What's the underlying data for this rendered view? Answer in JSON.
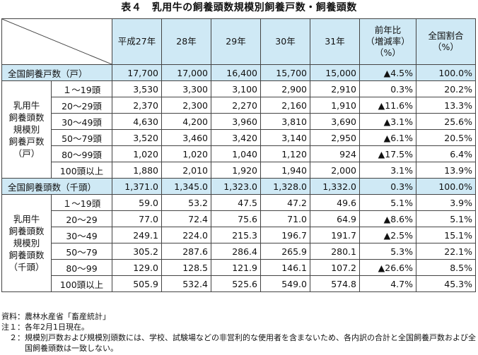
{
  "title": "表４　乳用牛の飼養頭数規模別飼養戸数・飼養頭数",
  "headers": [
    "平成27年",
    "28年",
    "29年",
    "30年",
    "31年",
    "前年比\n（増減率）\n（%）",
    "全国割合\n（%）"
  ],
  "households": {
    "group_label": "乳用牛\n飼養頭数\n規模別\n飼養戸数\n（戸）",
    "total": {
      "label": "全国飼養戸数（戸）",
      "cells": [
        "17,700",
        "17,000",
        "16,400",
        "15,700",
        "15,000",
        "▲4.5%",
        "100.0%"
      ]
    },
    "rows": [
      {
        "label": "１～19頭",
        "cells": [
          "3,530",
          "3,300",
          "3,100",
          "2,900",
          "2,910",
          "0.3%",
          "20.2%"
        ]
      },
      {
        "label": "20～29頭",
        "cells": [
          "2,370",
          "2,300",
          "2,270",
          "2,160",
          "1,910",
          "▲11.6%",
          "13.3%"
        ]
      },
      {
        "label": "30～49頭",
        "cells": [
          "4,630",
          "4,200",
          "3,960",
          "3,810",
          "3,690",
          "▲3.1%",
          "25.6%"
        ]
      },
      {
        "label": "50～79頭",
        "cells": [
          "3,520",
          "3,460",
          "3,420",
          "3,140",
          "2,950",
          "▲6.1%",
          "20.5%"
        ]
      },
      {
        "label": "80～99頭",
        "cells": [
          "1,020",
          "1,020",
          "1,040",
          "1,120",
          "924",
          "▲17.5%",
          "6.4%"
        ]
      },
      {
        "label": "100頭以上",
        "cells": [
          "1,880",
          "2,010",
          "1,920",
          "1,940",
          "2,000",
          "3.1%",
          "13.9%"
        ]
      }
    ]
  },
  "head_counts": {
    "group_label": "乳用牛\n飼養頭数\n規模別\n飼養頭数\n（千頭）",
    "total": {
      "label": "全国飼養頭数（千頭）",
      "cells": [
        "1,371.0",
        "1,345.0",
        "1,323.0",
        "1,328.0",
        "1,332.0",
        "0.3%",
        "100.0%"
      ]
    },
    "rows": [
      {
        "label": "１～19頭",
        "cells": [
          "59.0",
          "53.2",
          "47.5",
          "47.2",
          "49.6",
          "5.1%",
          "3.9%"
        ]
      },
      {
        "label": "20～29",
        "cells": [
          "77.0",
          "72.4",
          "75.6",
          "71.0",
          "64.9",
          "▲8.6%",
          "5.1%"
        ]
      },
      {
        "label": "30～49",
        "cells": [
          "249.1",
          "224.0",
          "215.3",
          "196.7",
          "191.7",
          "▲2.5%",
          "15.1%"
        ]
      },
      {
        "label": "50～79",
        "cells": [
          "305.2",
          "287.6",
          "286.4",
          "265.9",
          "280.1",
          "5.3%",
          "22.1%"
        ]
      },
      {
        "label": "80～99",
        "cells": [
          "129.0",
          "128.5",
          "121.9",
          "146.1",
          "107.2",
          "▲26.6%",
          "8.5%"
        ]
      },
      {
        "label": "100頭以上",
        "cells": [
          "505.9",
          "532.4",
          "525.6",
          "549.0",
          "574.8",
          "4.7%",
          "45.3%"
        ]
      }
    ]
  },
  "notes": [
    {
      "label": "資料：",
      "text": "農林水産省「畜産統計」"
    },
    {
      "label": "注１：",
      "text": "各年2月1日現在。"
    },
    {
      "label": "　２：",
      "text": "規模別戸数および規模別頭数には、学校、試験場などの非営利的な使用者を含まないため、各内訳の合計と全国飼養戸数および全国飼養頭数は一致しない。"
    }
  ]
}
